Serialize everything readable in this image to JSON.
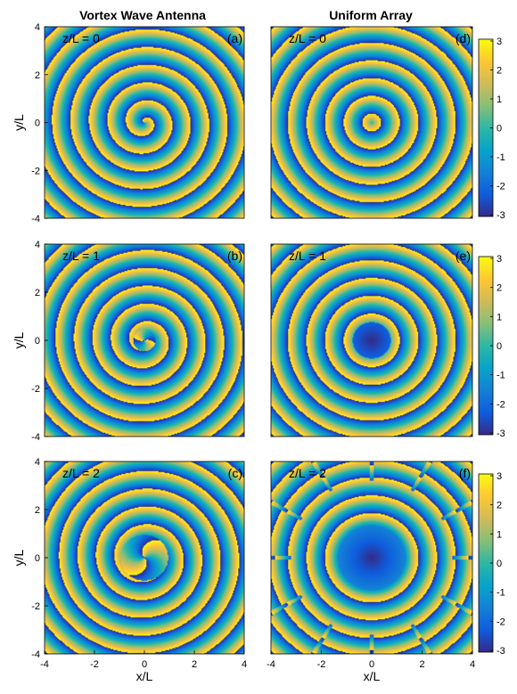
{
  "figure": {
    "columns": [
      {
        "title": "Vortex Wave Antenna"
      },
      {
        "title": "Uniform Array"
      }
    ]
  },
  "chart_data": [
    {
      "type": "heatmap",
      "column_title": "Vortex Wave Antenna",
      "panel_label": "(a)",
      "annotation": "z/L = 0",
      "xlabel": "",
      "ylabel": "y/L",
      "xlim": [
        -4,
        4
      ],
      "ylim": [
        -4,
        4
      ],
      "yticks": [
        "4",
        "2",
        "0",
        "-2",
        "-4"
      ],
      "xticks": [],
      "pattern": {
        "kind": "spiral",
        "charge": 1,
        "core_radius": 0.0,
        "rings_per_L": 1.35,
        "rotation": 0.0
      }
    },
    {
      "type": "heatmap",
      "column_title": "Uniform Array",
      "panel_label": "(d)",
      "annotation": "z/L = 0",
      "xlabel": "",
      "ylabel": "",
      "xlim": [
        -4,
        4
      ],
      "ylim": [
        -4,
        4
      ],
      "yticks": [],
      "xticks": [],
      "pattern": {
        "kind": "rings",
        "charge": 0,
        "core_radius": 0.0,
        "rings_per_L": 1.35,
        "rotation": 0.0
      },
      "colorbar": {
        "min": -3,
        "max": 3,
        "ticks": [
          "3",
          "2",
          "1",
          "0",
          "-1",
          "-2",
          "-3"
        ]
      }
    },
    {
      "type": "heatmap",
      "column_title": "Vortex Wave Antenna",
      "panel_label": "(b)",
      "annotation": "z/L = 1",
      "xlabel": "",
      "ylabel": "y/L",
      "xlim": [
        -4,
        4
      ],
      "ylim": [
        -4,
        4
      ],
      "yticks": [
        "4",
        "2",
        "0",
        "-2",
        "-4"
      ],
      "xticks": [],
      "pattern": {
        "kind": "spiral",
        "charge": 1,
        "core_radius": 0.45,
        "rings_per_L": 1.35,
        "rotation": 1.2
      }
    },
    {
      "type": "heatmap",
      "column_title": "Uniform Array",
      "panel_label": "(e)",
      "annotation": "z/L = 1",
      "xlabel": "",
      "ylabel": "",
      "xlim": [
        -4,
        4
      ],
      "ylim": [
        -4,
        4
      ],
      "yticks": [],
      "xticks": [],
      "pattern": {
        "kind": "rings",
        "charge": 0,
        "core_radius": 0.75,
        "rings_per_L": 1.35,
        "rotation": 0.0
      },
      "colorbar": {
        "min": -3,
        "max": 3,
        "ticks": [
          "3",
          "2",
          "1",
          "0",
          "-1",
          "-2",
          "-3"
        ]
      }
    },
    {
      "type": "heatmap",
      "column_title": "Vortex Wave Antenna",
      "panel_label": "(c)",
      "annotation": "z/L = 2",
      "xlabel": "x/L",
      "ylabel": "y/L",
      "xlim": [
        -4,
        4
      ],
      "ylim": [
        -4,
        4
      ],
      "yticks": [
        "4",
        "2",
        "0",
        "-2",
        "-4"
      ],
      "xticks": [
        "-4",
        "-2",
        "0",
        "2",
        "4"
      ],
      "pattern": {
        "kind": "spiral",
        "charge": 1,
        "core_radius": 0.95,
        "rings_per_L": 1.35,
        "rotation": 2.4
      }
    },
    {
      "type": "heatmap",
      "column_title": "Uniform Array",
      "panel_label": "(f)",
      "annotation": "z/L = 2",
      "xlabel": "x/L",
      "ylabel": "",
      "xlim": [
        -4,
        4
      ],
      "ylim": [
        -4,
        4
      ],
      "yticks": [],
      "xticks": [
        "-4",
        "-2",
        "0",
        "2",
        "4"
      ],
      "pattern": {
        "kind": "rings",
        "charge": 0,
        "core_radius": 1.35,
        "rings_per_L": 1.35,
        "rotation": 0.0
      },
      "colorbar": {
        "min": -3,
        "max": 3,
        "ticks": [
          "3",
          "2",
          "1",
          "0",
          "-1",
          "-2",
          "-3"
        ]
      }
    }
  ]
}
